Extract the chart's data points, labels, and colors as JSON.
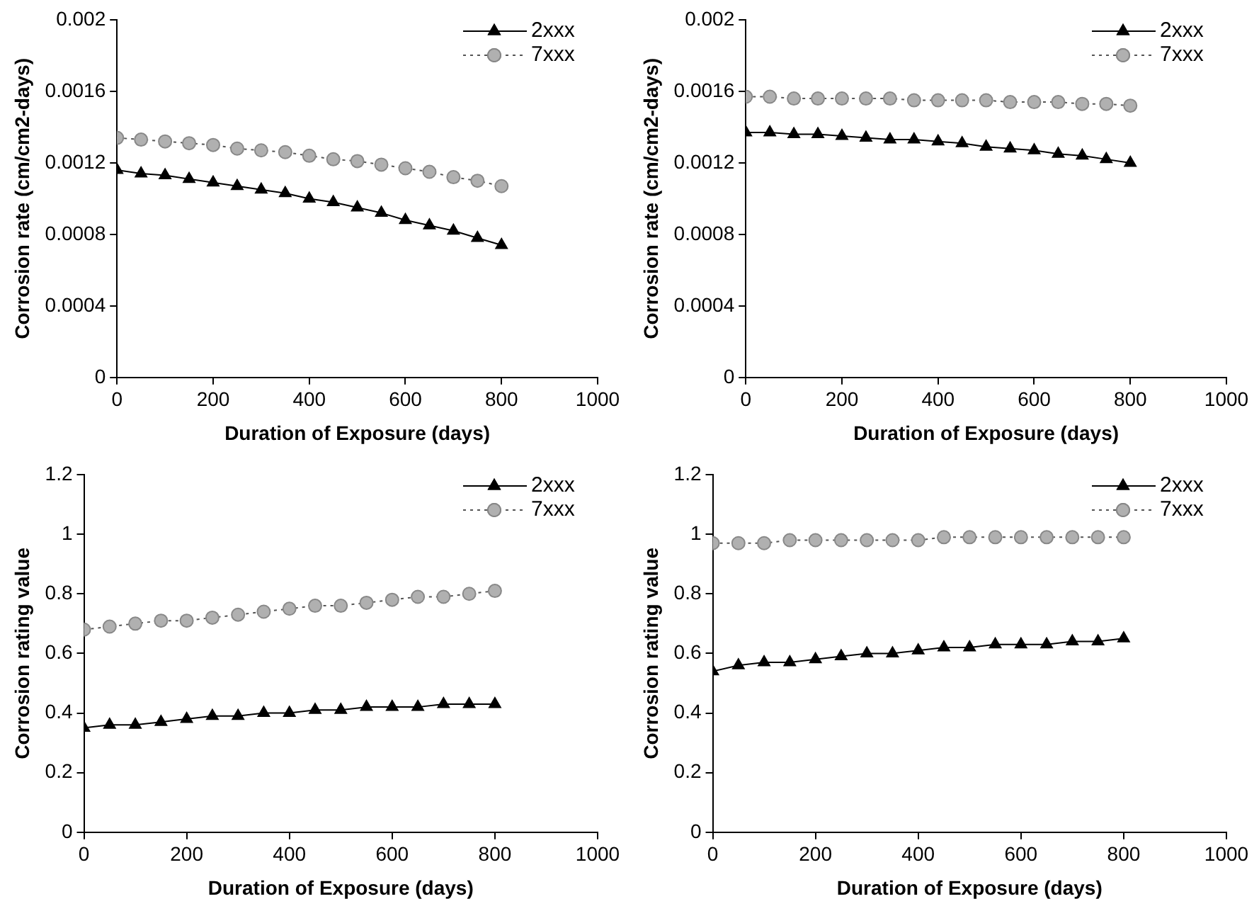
{
  "chart_data": [
    {
      "type": "line",
      "ylabel": "Corrosion rate (cm/cm2-days)",
      "xlabel": "Duration of Exposure (days)",
      "x": [
        0,
        50,
        100,
        150,
        200,
        250,
        300,
        350,
        400,
        450,
        500,
        550,
        600,
        650,
        700,
        750,
        800
      ],
      "xlim": [
        0,
        1000
      ],
      "xticks": [
        0,
        200,
        400,
        600,
        800,
        1000
      ],
      "ylim": [
        0,
        0.002
      ],
      "yticks": [
        0,
        0.0004,
        0.0008,
        0.0012,
        0.0016,
        0.002
      ],
      "grid": false,
      "legend": "top right",
      "series": [
        {
          "name": "2xxx",
          "color": "#000000",
          "marker": "triangle",
          "line_style": "solid",
          "values": [
            0.00116,
            0.00114,
            0.00113,
            0.00111,
            0.00109,
            0.00107,
            0.00105,
            0.00103,
            0.001,
            0.00098,
            0.00095,
            0.00092,
            0.00088,
            0.00085,
            0.00082,
            0.00078,
            0.00074
          ]
        },
        {
          "name": "7xxx",
          "color": "#b0b0b0",
          "marker": "circle",
          "line_style": "dotted",
          "values": [
            0.00134,
            0.00133,
            0.00132,
            0.00131,
            0.0013,
            0.00128,
            0.00127,
            0.00126,
            0.00124,
            0.00122,
            0.00121,
            0.00119,
            0.00117,
            0.00115,
            0.00112,
            0.0011,
            0.00107
          ]
        }
      ]
    },
    {
      "type": "line",
      "ylabel": "Corrosion rate (cm/cm2-days)",
      "xlabel": "Duration of Exposure (days)",
      "x": [
        0,
        50,
        100,
        150,
        200,
        250,
        300,
        350,
        400,
        450,
        500,
        550,
        600,
        650,
        700,
        750,
        800
      ],
      "xlim": [
        0,
        1000
      ],
      "xticks": [
        0,
        200,
        400,
        600,
        800,
        1000
      ],
      "ylim": [
        0,
        0.002
      ],
      "yticks": [
        0,
        0.0004,
        0.0008,
        0.0012,
        0.0016,
        0.002
      ],
      "grid": false,
      "legend": "top right",
      "series": [
        {
          "name": "2xxx",
          "color": "#000000",
          "marker": "triangle",
          "line_style": "solid",
          "values": [
            0.00137,
            0.00137,
            0.00136,
            0.00136,
            0.00135,
            0.00134,
            0.00133,
            0.00133,
            0.00132,
            0.00131,
            0.00129,
            0.00128,
            0.00127,
            0.00125,
            0.00124,
            0.00122,
            0.0012
          ]
        },
        {
          "name": "7xxx",
          "color": "#b0b0b0",
          "marker": "circle",
          "line_style": "dotted",
          "values": [
            0.00157,
            0.00157,
            0.00156,
            0.00156,
            0.00156,
            0.00156,
            0.00156,
            0.00155,
            0.00155,
            0.00155,
            0.00155,
            0.00154,
            0.00154,
            0.00154,
            0.00153,
            0.00153,
            0.00152
          ]
        }
      ]
    },
    {
      "type": "line",
      "ylabel": "Corrosion rating value",
      "xlabel": "Duration of Exposure (days)",
      "x": [
        0,
        50,
        100,
        150,
        200,
        250,
        300,
        350,
        400,
        450,
        500,
        550,
        600,
        650,
        700,
        750,
        800
      ],
      "xlim": [
        0,
        1000
      ],
      "xticks": [
        0,
        200,
        400,
        600,
        800,
        1000
      ],
      "ylim": [
        0,
        1.2
      ],
      "yticks": [
        0,
        0.2,
        0.4,
        0.6,
        0.8,
        1,
        1.2
      ],
      "grid": false,
      "legend": "top right",
      "series": [
        {
          "name": "2xxx",
          "color": "#000000",
          "marker": "triangle",
          "line_style": "solid",
          "values": [
            0.35,
            0.36,
            0.36,
            0.37,
            0.38,
            0.39,
            0.39,
            0.4,
            0.4,
            0.41,
            0.41,
            0.42,
            0.42,
            0.42,
            0.43,
            0.43,
            0.43
          ]
        },
        {
          "name": "7xxx",
          "color": "#b0b0b0",
          "marker": "circle",
          "line_style": "dotted",
          "values": [
            0.68,
            0.69,
            0.7,
            0.71,
            0.71,
            0.72,
            0.73,
            0.74,
            0.75,
            0.76,
            0.76,
            0.77,
            0.78,
            0.79,
            0.79,
            0.8,
            0.81
          ]
        }
      ]
    },
    {
      "type": "line",
      "ylabel": "Corrosion rating value",
      "xlabel": "Duration of Exposure (days)",
      "x": [
        0,
        50,
        100,
        150,
        200,
        250,
        300,
        350,
        400,
        450,
        500,
        550,
        600,
        650,
        700,
        750,
        800
      ],
      "xlim": [
        0,
        1000
      ],
      "xticks": [
        0,
        200,
        400,
        600,
        800,
        1000
      ],
      "ylim": [
        0,
        1.2
      ],
      "yticks": [
        0,
        0.2,
        0.4,
        0.6,
        0.8,
        1,
        1.2
      ],
      "grid": false,
      "legend": "top right",
      "series": [
        {
          "name": "2xxx",
          "color": "#000000",
          "marker": "triangle",
          "line_style": "solid",
          "values": [
            0.54,
            0.56,
            0.57,
            0.57,
            0.58,
            0.59,
            0.6,
            0.6,
            0.61,
            0.62,
            0.62,
            0.63,
            0.63,
            0.63,
            0.64,
            0.64,
            0.65
          ]
        },
        {
          "name": "7xxx",
          "color": "#b0b0b0",
          "marker": "circle",
          "line_style": "dotted",
          "values": [
            0.97,
            0.97,
            0.97,
            0.98,
            0.98,
            0.98,
            0.98,
            0.98,
            0.98,
            0.99,
            0.99,
            0.99,
            0.99,
            0.99,
            0.99,
            0.99,
            0.99
          ]
        }
      ]
    }
  ]
}
